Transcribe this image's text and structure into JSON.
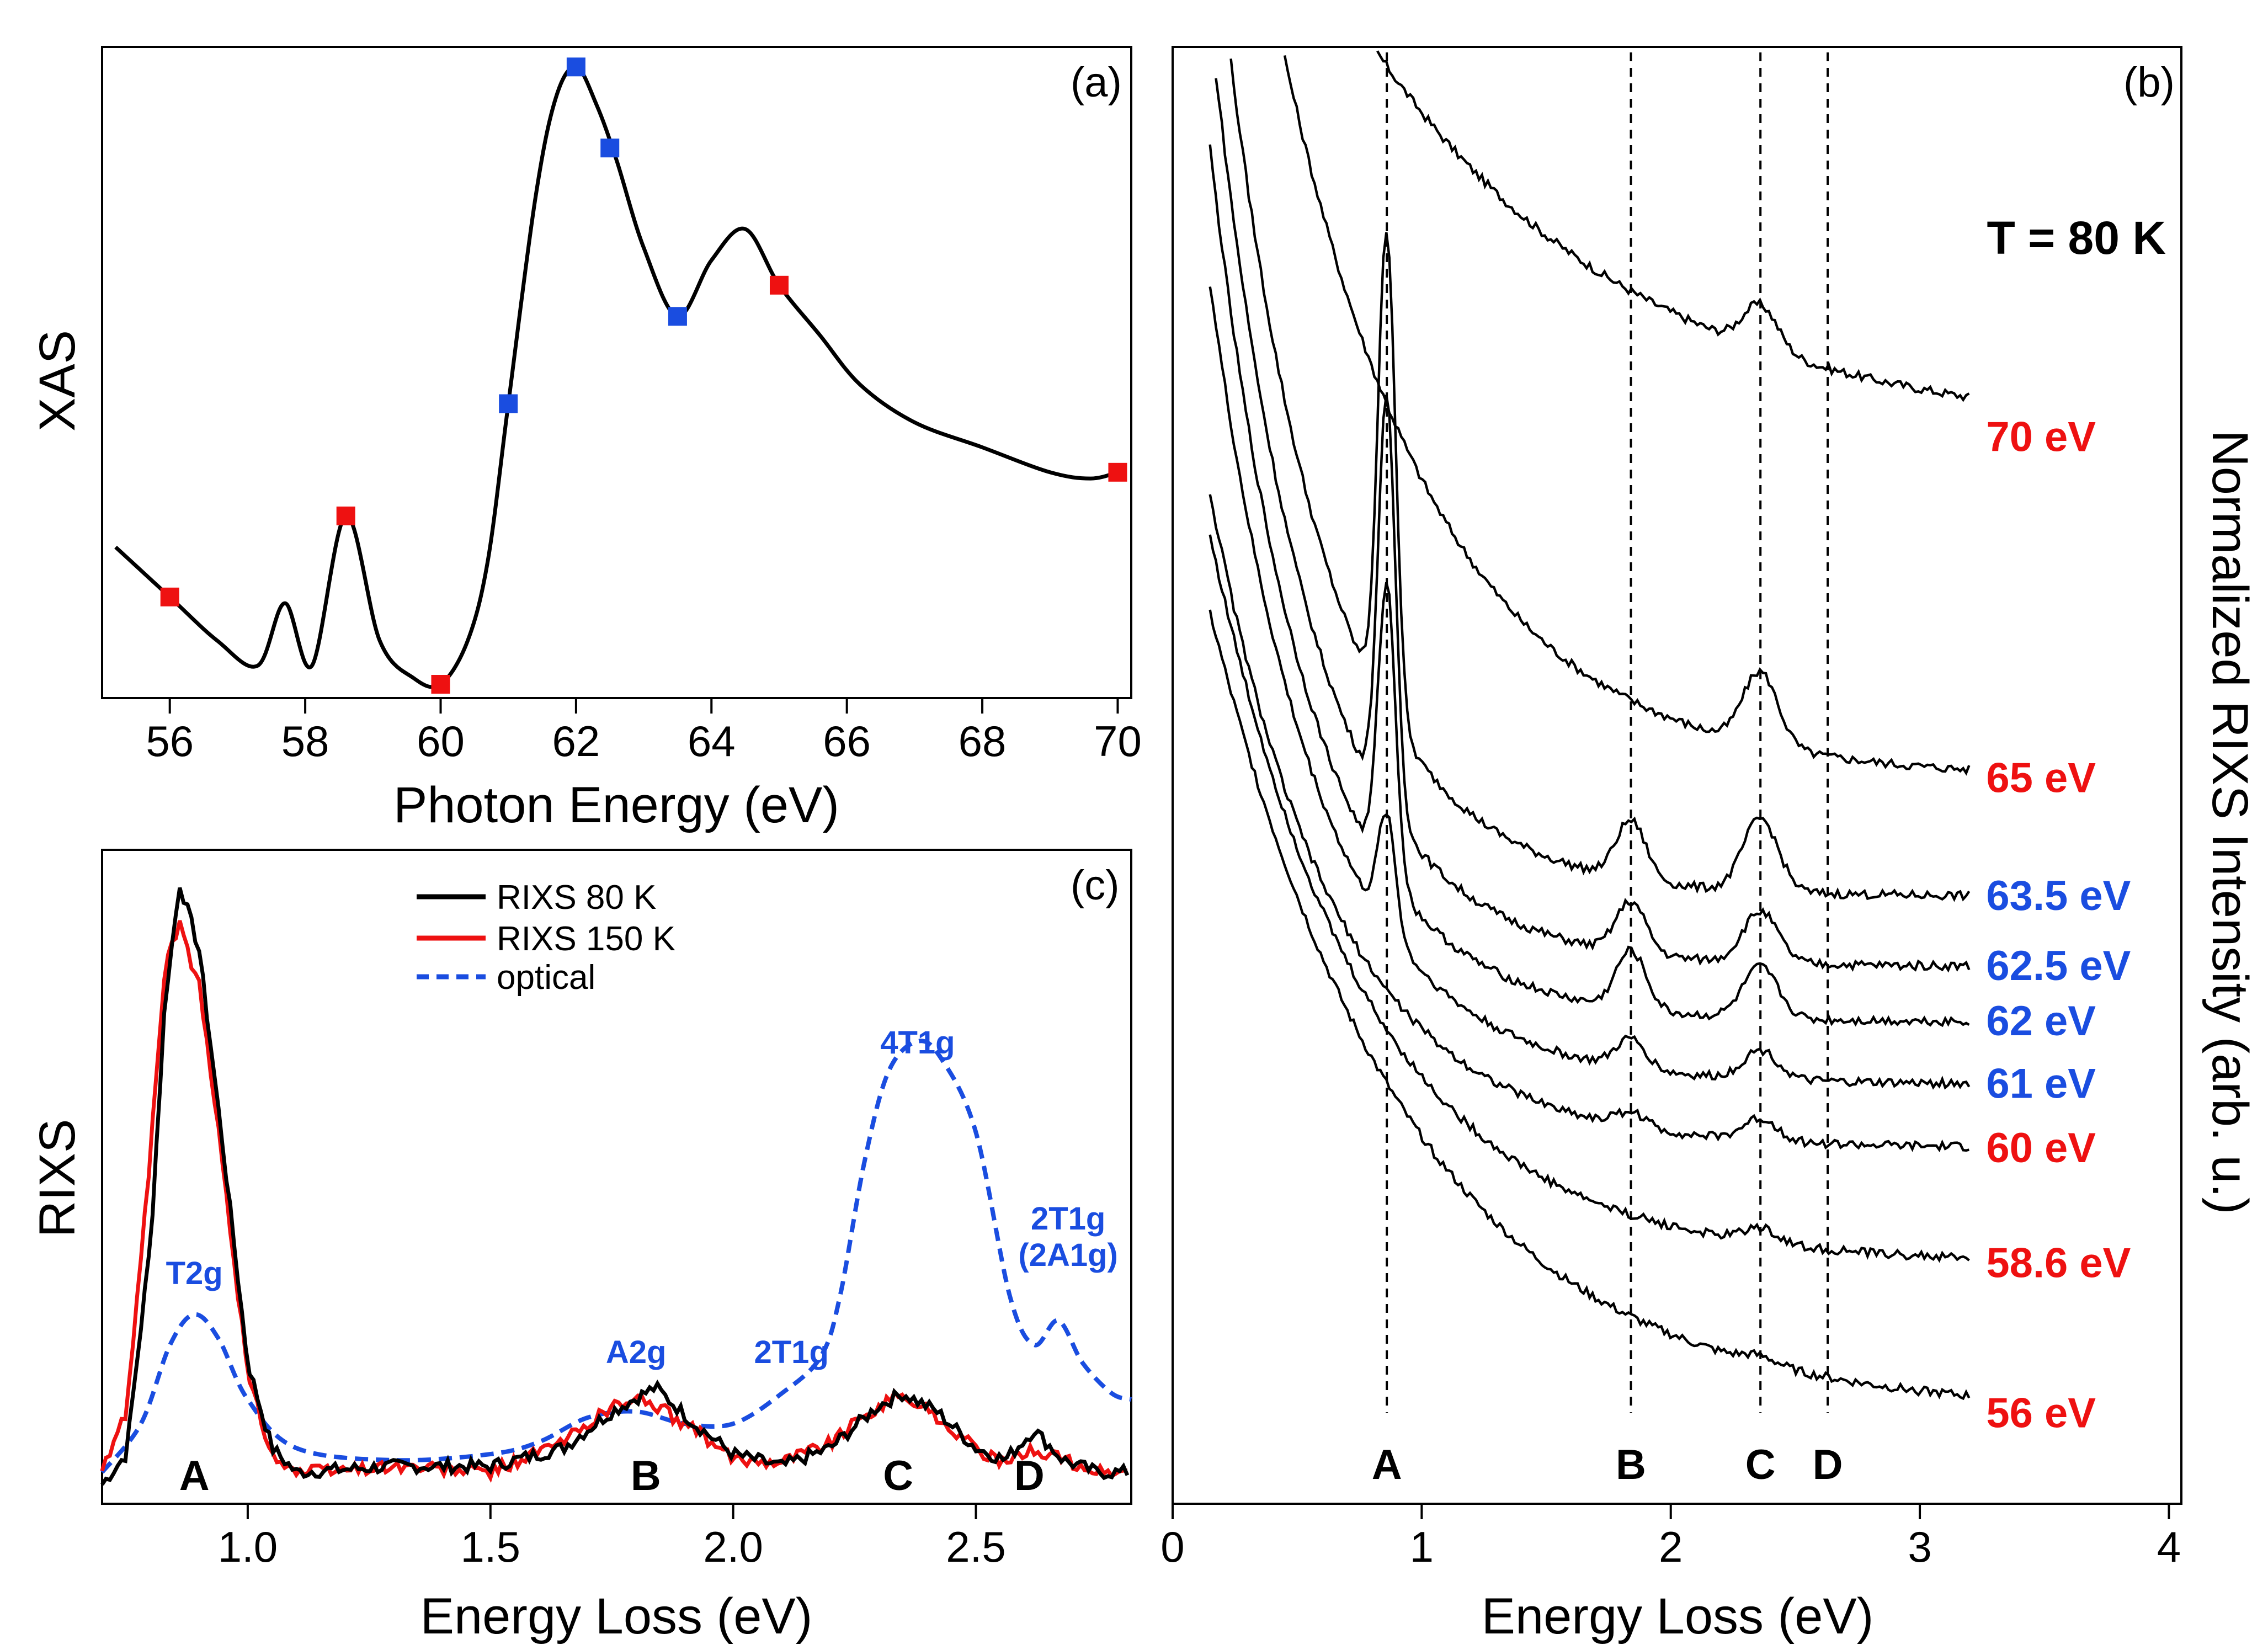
{
  "chart_data": [
    {
      "panel": "(a)",
      "type": "line",
      "xlabel": "Photon Energy (eV)",
      "ylabel": "XAS",
      "xlim": [
        55,
        70.2
      ],
      "ylim": [
        0,
        1
      ],
      "xticks": [
        "56",
        "58",
        "60",
        "62",
        "64",
        "66",
        "68",
        "70"
      ],
      "series": [
        {
          "name": "XAS",
          "color": "#000000",
          "x": [
            55.2,
            56.0,
            56.7,
            57.3,
            57.7,
            58.1,
            58.6,
            59.1,
            59.6,
            60.0,
            60.4,
            60.7,
            61.0,
            61.4,
            61.7,
            62.0,
            62.3,
            62.6,
            63.0,
            63.5,
            64.0,
            64.5,
            65.0,
            65.6,
            66.2,
            67.0,
            68.0,
            69.0,
            69.6,
            70.0
          ],
          "y": [
            0.22,
            0.14,
            0.07,
            0.03,
            0.13,
            0.03,
            0.27,
            0.07,
            0.01,
            0.0,
            0.07,
            0.2,
            0.45,
            0.78,
            0.94,
            0.99,
            0.93,
            0.84,
            0.7,
            0.59,
            0.68,
            0.73,
            0.64,
            0.56,
            0.48,
            0.42,
            0.38,
            0.34,
            0.33,
            0.34
          ]
        }
      ],
      "markers": [
        {
          "x": 56.0,
          "y": 0.14,
          "color": "#ee1111"
        },
        {
          "x": 58.6,
          "y": 0.27,
          "color": "#ee1111"
        },
        {
          "x": 60.0,
          "y": 0.0,
          "color": "#ee1111"
        },
        {
          "x": 61.0,
          "y": 0.45,
          "color": "#1a4de0"
        },
        {
          "x": 62.0,
          "y": 0.99,
          "color": "#1a4de0"
        },
        {
          "x": 62.5,
          "y": 0.86,
          "color": "#1a4de0"
        },
        {
          "x": 63.5,
          "y": 0.59,
          "color": "#1a4de0"
        },
        {
          "x": 65.0,
          "y": 0.64,
          "color": "#ee1111"
        },
        {
          "x": 70.0,
          "y": 0.34,
          "color": "#ee1111"
        }
      ]
    },
    {
      "panel": "(b)",
      "type": "line",
      "xlabel": "Energy Loss (eV)",
      "ylabel": "Normalized RIXS Intensity (arb. u.)",
      "xlim": [
        0,
        4.05
      ],
      "ylim": [
        0,
        1
      ],
      "xticks": [
        "0",
        "1",
        "2",
        "3",
        "4"
      ],
      "annotation": "T = 80 K",
      "vlines": [
        {
          "x": 0.86,
          "label": "A"
        },
        {
          "x": 1.84,
          "label": "B"
        },
        {
          "x": 2.36,
          "label": "C"
        },
        {
          "x": 2.63,
          "label": "D"
        }
      ],
      "series": [
        {
          "name": "70 eV",
          "color": "#ee1111",
          "baseline": 0.732,
          "amplitude": 0.5,
          "decay": 0.95,
          "peakA": 0.0,
          "peakB": 0.0,
          "peakC": 0.03
        },
        {
          "name": "65 eV",
          "color": "#ee1111",
          "baseline": 0.498,
          "amplitude": 0.8,
          "decay": 1.6,
          "peakA": 0.0,
          "peakB": 0.0,
          "peakC": 0.05
        },
        {
          "name": "63.5 eV",
          "color": "#1a4de0",
          "baseline": 0.417,
          "amplitude": 0.7,
          "decay": 2.4,
          "peakA": 0.33,
          "peakB": 0.04,
          "peakC": 0.05
        },
        {
          "name": "62.5 eV",
          "color": "#1a4de0",
          "baseline": 0.369,
          "amplitude": 0.65,
          "decay": 2.5,
          "peakA": 0.28,
          "peakB": 0.035,
          "peakC": 0.035
        },
        {
          "name": "62 eV",
          "color": "#1a4de0",
          "baseline": 0.331,
          "amplitude": 0.6,
          "decay": 2.5,
          "peakA": 0.2,
          "peakB": 0.04,
          "peakC": 0.035
        },
        {
          "name": "61 eV",
          "color": "#1a4de0",
          "baseline": 0.288,
          "amplitude": 0.55,
          "decay": 2.3,
          "peakA": 0.08,
          "peakB": 0.02,
          "peakC": 0.02
        },
        {
          "name": "60 eV",
          "color": "#ee1111",
          "baseline": 0.244,
          "amplitude": 0.45,
          "decay": 2.0,
          "peakA": 0.0,
          "peakB": 0.01,
          "peakC": 0.015
        },
        {
          "name": "58.6 eV",
          "color": "#ee1111",
          "baseline": 0.165,
          "amplitude": 0.5,
          "decay": 1.6,
          "peakA": 0.0,
          "peakB": 0.0,
          "peakC": 0.01
        },
        {
          "name": "56 eV",
          "color": "#ee1111",
          "baseline": 0.062,
          "amplitude": 0.55,
          "decay": 1.25,
          "peakA": 0.0,
          "peakB": 0.0,
          "peakC": 0.005
        }
      ]
    },
    {
      "panel": "(c)",
      "type": "line",
      "xlabel": "Energy Loss (eV)",
      "ylabel": "RIXS",
      "xlim": [
        0.7,
        2.82
      ],
      "ylim": [
        0,
        1
      ],
      "xticks": [
        "1.0",
        "1.5",
        "2.0",
        "2.5"
      ],
      "peak_letters": [
        {
          "x": 0.89,
          "label": "A"
        },
        {
          "x": 1.82,
          "label": "B"
        },
        {
          "x": 2.34,
          "label": "C"
        },
        {
          "x": 2.61,
          "label": "D"
        }
      ],
      "optical_labels": [
        {
          "x": 0.89,
          "y": 0.33,
          "text": "T2g"
        },
        {
          "x": 1.8,
          "y": 0.2,
          "text": "A2g"
        },
        {
          "x": 2.12,
          "y": 0.2,
          "text": "2T1g"
        },
        {
          "x": 2.38,
          "y": 0.71,
          "text": "4T1g"
        },
        {
          "x": 2.69,
          "y": 0.42,
          "text": "2T1g"
        },
        {
          "x": 2.69,
          "y": 0.36,
          "text": "(2A1g)"
        }
      ],
      "series": [
        {
          "name": "RIXS 80 K",
          "color": "#000000",
          "x": [
            0.7,
            0.75,
            0.8,
            0.83,
            0.86,
            0.9,
            0.95,
            1.0,
            1.05,
            1.1,
            1.3,
            1.5,
            1.65,
            1.75,
            1.84,
            1.92,
            2.0,
            2.1,
            2.2,
            2.3,
            2.35,
            2.42,
            2.5,
            2.56,
            2.62,
            2.68,
            2.75,
            2.82
          ],
          "y": [
            0.0,
            0.05,
            0.4,
            0.8,
            0.99,
            0.88,
            0.55,
            0.2,
            0.06,
            0.02,
            0.03,
            0.03,
            0.06,
            0.12,
            0.16,
            0.1,
            0.05,
            0.03,
            0.06,
            0.13,
            0.15,
            0.12,
            0.06,
            0.04,
            0.09,
            0.04,
            0.02,
            0.02
          ]
        },
        {
          "name": "RIXS 150 K",
          "color": "#ee1111",
          "x": [
            0.7,
            0.75,
            0.8,
            0.83,
            0.86,
            0.9,
            0.95,
            1.0,
            1.05,
            1.1,
            1.3,
            1.5,
            1.65,
            1.75,
            1.82,
            1.92,
            2.0,
            2.1,
            2.2,
            2.3,
            2.35,
            2.42,
            2.5,
            2.56,
            2.62,
            2.68,
            2.75,
            2.82
          ],
          "y": [
            0.02,
            0.12,
            0.55,
            0.86,
            0.92,
            0.82,
            0.52,
            0.18,
            0.05,
            0.02,
            0.03,
            0.02,
            0.07,
            0.13,
            0.14,
            0.09,
            0.04,
            0.04,
            0.07,
            0.13,
            0.15,
            0.11,
            0.06,
            0.03,
            0.06,
            0.04,
            0.02,
            0.02
          ]
        },
        {
          "name": "optical",
          "color": "#1a4de0",
          "dashed": true,
          "x": [
            0.7,
            0.78,
            0.84,
            0.89,
            0.94,
            1.0,
            1.1,
            1.3,
            1.5,
            1.6,
            1.7,
            1.8,
            1.9,
            2.0,
            2.1,
            2.18,
            2.22,
            2.27,
            2.32,
            2.38,
            2.43,
            2.5,
            2.57,
            2.62,
            2.67,
            2.72,
            2.78,
            2.82
          ],
          "y": [
            0.02,
            0.1,
            0.23,
            0.28,
            0.24,
            0.14,
            0.06,
            0.04,
            0.05,
            0.07,
            0.11,
            0.12,
            0.1,
            0.1,
            0.15,
            0.21,
            0.31,
            0.53,
            0.68,
            0.73,
            0.7,
            0.58,
            0.31,
            0.23,
            0.27,
            0.2,
            0.15,
            0.14
          ]
        }
      ],
      "legend": {
        "placement": "top-center",
        "entries": [
          "RIXS 80 K",
          "RIXS 150 K",
          "optical"
        ]
      }
    }
  ]
}
